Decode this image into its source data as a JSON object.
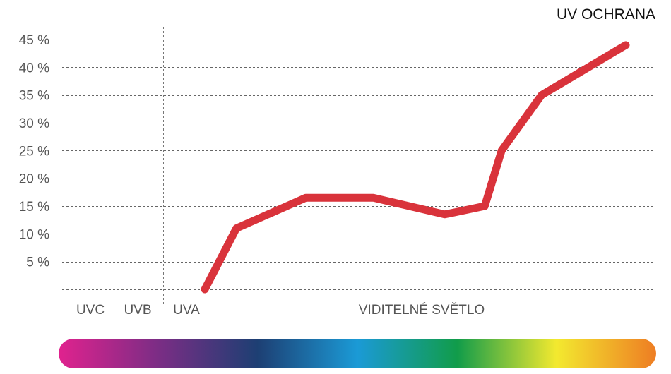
{
  "chart_data": {
    "type": "line",
    "title": "UV OCHRANA",
    "xlabel": "",
    "ylabel": "",
    "ylim": [
      0,
      45
    ],
    "y_ticks": [
      {
        "value": 5,
        "label": "5 %"
      },
      {
        "value": 10,
        "label": "10 %"
      },
      {
        "value": 15,
        "label": "15 %"
      },
      {
        "value": 20,
        "label": "20 %"
      },
      {
        "value": 25,
        "label": "25 %"
      },
      {
        "value": 30,
        "label": "30 %"
      },
      {
        "value": 35,
        "label": "35 %"
      },
      {
        "value": 40,
        "label": "40 %"
      },
      {
        "value": 45,
        "label": "45 %"
      }
    ],
    "grid": true,
    "x_bands": [
      {
        "label": "UVC"
      },
      {
        "label": "UVB"
      },
      {
        "label": "UVA"
      },
      {
        "label": "VIDITELNÉ SVĚTLO"
      }
    ],
    "series": [
      {
        "color": "#d9333b",
        "x": [
          0,
          0.075,
          0.24,
          0.4,
          0.57,
          0.665,
          0.705,
          0.8,
          1
        ],
        "y": [
          0,
          11,
          16.5,
          16.5,
          13.5,
          15,
          25,
          35,
          44
        ]
      }
    ],
    "spectrum_colors": [
      "#e0228e",
      "#7b2d85",
      "#1d3f73",
      "#1b9ad6",
      "#119c4a",
      "#f3e92f",
      "#ee7d23"
    ]
  }
}
